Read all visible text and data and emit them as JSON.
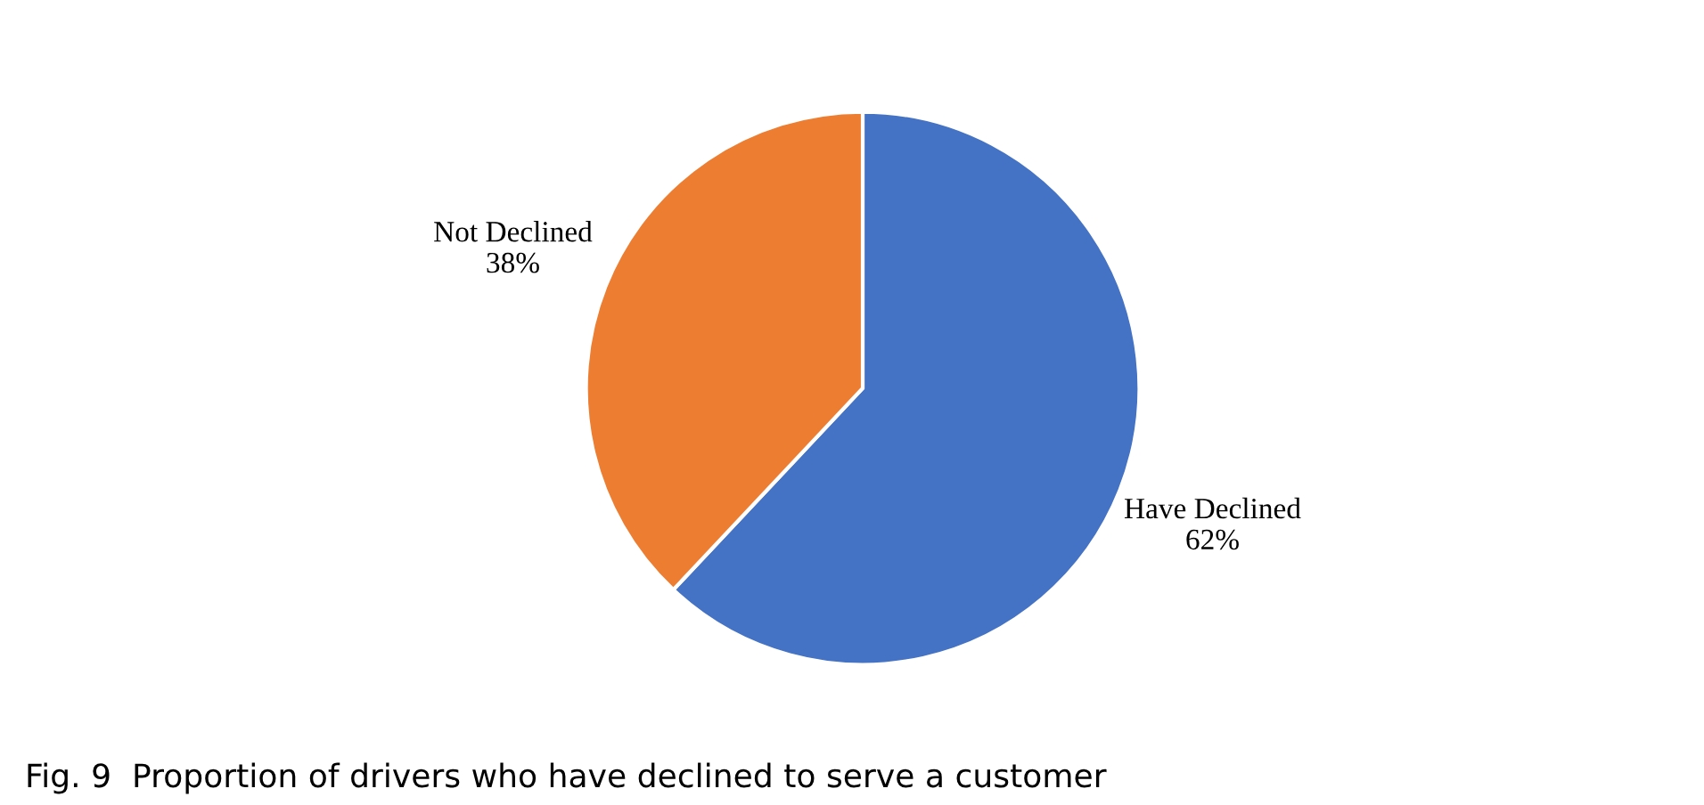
{
  "chart_data": {
    "type": "pie",
    "categories": [
      "Have Declined",
      "Not Declined"
    ],
    "values": [
      62,
      38
    ],
    "colors": [
      "#4472c4",
      "#ed7d31"
    ],
    "value_labels": [
      "62%",
      "38%"
    ],
    "annotations": [
      "Fig. 9  Proportion of drivers who have declined to serve a customer"
    ]
  }
}
